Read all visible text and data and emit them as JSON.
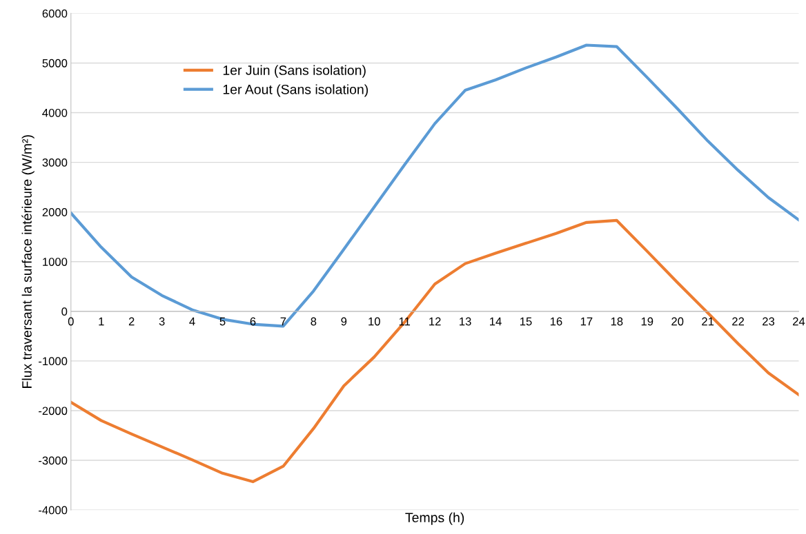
{
  "chart_data": {
    "type": "line",
    "xlabel": "Temps (h)",
    "ylabel": "Flux traversant la surface intérieure (W/m²)",
    "categories": [
      "0",
      "1",
      "2",
      "3",
      "4",
      "5",
      "6",
      "7",
      "8",
      "9",
      "10",
      "11",
      "12",
      "13",
      "14",
      "15",
      "16",
      "17",
      "18",
      "19",
      "20",
      "21",
      "22",
      "23",
      "24"
    ],
    "series": [
      {
        "name": "1er Juin (Sans isolation)",
        "color": "#ed7d31",
        "values": [
          -1830,
          -2200,
          -2470,
          -2730,
          -2990,
          -3260,
          -3430,
          -3120,
          -2360,
          -1500,
          -920,
          -220,
          550,
          960,
          1170,
          1370,
          1570,
          1790,
          1830,
          1210,
          580,
          -30,
          -650,
          -1240,
          -1680
        ]
      },
      {
        "name": "1er Aout (Sans isolation)",
        "color": "#5b9bd5",
        "values": [
          1980,
          1290,
          690,
          320,
          30,
          -160,
          -260,
          -300,
          410,
          1250,
          2100,
          2950,
          3780,
          4450,
          4660,
          4900,
          5120,
          5360,
          5330,
          4710,
          4080,
          3430,
          2840,
          2290,
          1840
        ]
      }
    ],
    "ylim": [
      -4000,
      6000
    ],
    "yticks": [
      -4000,
      -3000,
      -2000,
      -1000,
      0,
      1000,
      2000,
      3000,
      4000,
      5000,
      6000
    ],
    "grid": "y",
    "legend": "top left",
    "marker": "none",
    "line_style": "solid"
  }
}
